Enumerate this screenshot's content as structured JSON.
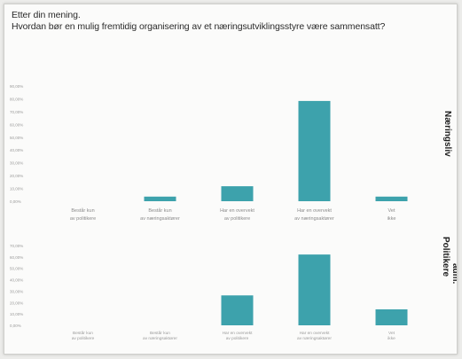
{
  "page": {
    "title_line1": "Etter din mening.",
    "title_line2": "Hvordan bør en mulig fremtidig organisering av et næringsutviklingsstyre være sammensatt?"
  },
  "panel_labels": {
    "top": "Næringsliv",
    "bottom": "Politikere",
    "bottom_extra": "adm."
  },
  "chart_data": [
    {
      "type": "bar",
      "panel": "Næringsliv",
      "categories": [
        "Består kun av politikere",
        "Består kun av næringsaktører",
        "Har en overvekt av politikere",
        "Har en overvekt av næringsaktører",
        "Vet ikke"
      ],
      "values": [
        0,
        4,
        13,
        87,
        4
      ],
      "ylim": [
        0,
        100
      ],
      "yticks": [
        "90,00%",
        "80,00%",
        "70,00%",
        "60,00%",
        "50,00%",
        "40,00%",
        "30,00%",
        "20,00%",
        "10,00%",
        "0,00%"
      ],
      "color": "#3da2ac"
    },
    {
      "type": "bar",
      "panel": "Politikere",
      "categories": [
        "Består kun av politikere",
        "Består kun av næringsaktører",
        "Har en overvekt av politikere",
        "Har en overvekt av næringsaktører",
        "Vet ikke"
      ],
      "values": [
        0,
        0,
        30,
        71,
        16
      ],
      "ylim": [
        0,
        80
      ],
      "yticks": [
        "70,00%",
        "60,00%",
        "50,00%",
        "40,00%",
        "30,00%",
        "20,00%",
        "10,00%",
        "0,00%"
      ],
      "color": "#3da2ac"
    }
  ]
}
